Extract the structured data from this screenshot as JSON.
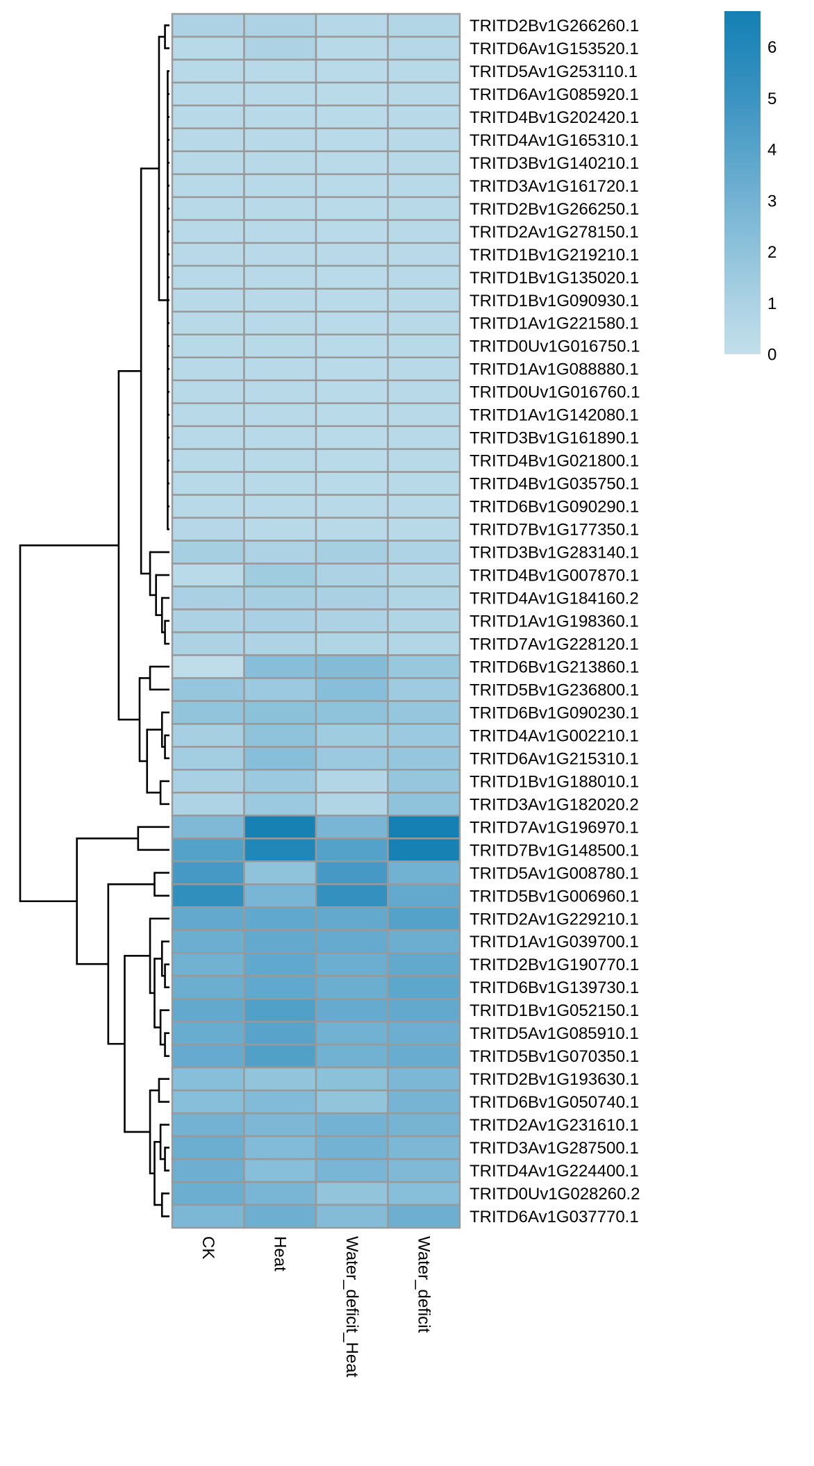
{
  "chart_data": {
    "type": "heatmap",
    "title": "",
    "columns": [
      "CK",
      "Heat",
      "Water_deficit_Heat",
      "Water_deficit"
    ],
    "rows": [
      "TRITD2Bv1G266260.1",
      "TRITD6Av1G153520.1",
      "TRITD5Av1G253110.1",
      "TRITD6Av1G085920.1",
      "TRITD4Bv1G202420.1",
      "TRITD4Av1G165310.1",
      "TRITD3Bv1G140210.1",
      "TRITD3Av1G161720.1",
      "TRITD2Bv1G266250.1",
      "TRITD2Av1G278150.1",
      "TRITD1Bv1G219210.1",
      "TRITD1Bv1G135020.1",
      "TRITD1Bv1G090930.1",
      "TRITD1Av1G221580.1",
      "TRITD0Uv1G016750.1",
      "TRITD1Av1G088880.1",
      "TRITD0Uv1G016760.1",
      "TRITD1Av1G142080.1",
      "TRITD3Bv1G161890.1",
      "TRITD4Bv1G021800.1",
      "TRITD4Bv1G035750.1",
      "TRITD6Bv1G090290.1",
      "TRITD7Bv1G177350.1",
      "TRITD3Bv1G283140.1",
      "TRITD4Bv1G007870.1",
      "TRITD4Av1G184160.2",
      "TRITD1Av1G198360.1",
      "TRITD7Av1G228120.1",
      "TRITD6Bv1G213860.1",
      "TRITD5Bv1G236800.1",
      "TRITD6Bv1G090230.1",
      "TRITD4Av1G002210.1",
      "TRITD6Av1G215310.1",
      "TRITD1Bv1G188010.1",
      "TRITD3Av1G182020.2",
      "TRITD7Av1G196970.1",
      "TRITD7Bv1G148500.1",
      "TRITD5Av1G008780.1",
      "TRITD5Bv1G006960.1",
      "TRITD2Av1G229210.1",
      "TRITD1Av1G039700.1",
      "TRITD2Bv1G190770.1",
      "TRITD6Bv1G139730.1",
      "TRITD1Bv1G052150.1",
      "TRITD5Av1G085910.1",
      "TRITD5Bv1G070350.1",
      "TRITD2Bv1G193630.1",
      "TRITD6Bv1G050740.1",
      "TRITD2Av1G231610.1",
      "TRITD3Av1G287500.1",
      "TRITD4Av1G224400.1",
      "TRITD0Uv1G028260.2",
      "TRITD6Av1G037770.1"
    ],
    "values": [
      [
        1.0,
        1.0,
        0.6,
        0.7
      ],
      [
        0.5,
        1.0,
        0.5,
        0.6
      ],
      [
        0.5,
        0.5,
        0.4,
        0.5
      ],
      [
        0.5,
        0.5,
        0.4,
        0.5
      ],
      [
        0.5,
        0.5,
        0.4,
        0.5
      ],
      [
        0.5,
        0.5,
        0.4,
        0.5
      ],
      [
        0.5,
        0.5,
        0.4,
        0.5
      ],
      [
        0.5,
        0.5,
        0.4,
        0.5
      ],
      [
        0.5,
        0.5,
        0.4,
        0.5
      ],
      [
        0.5,
        0.5,
        0.4,
        0.5
      ],
      [
        0.5,
        0.5,
        0.5,
        0.5
      ],
      [
        0.5,
        0.5,
        0.4,
        0.5
      ],
      [
        0.5,
        0.5,
        0.4,
        0.5
      ],
      [
        0.5,
        0.5,
        0.4,
        0.5
      ],
      [
        0.5,
        0.5,
        0.4,
        0.5
      ],
      [
        0.5,
        0.5,
        0.4,
        0.5
      ],
      [
        0.5,
        0.5,
        0.4,
        0.5
      ],
      [
        0.5,
        0.5,
        0.4,
        0.5
      ],
      [
        0.5,
        0.5,
        0.4,
        0.5
      ],
      [
        0.5,
        0.5,
        0.4,
        0.5
      ],
      [
        0.5,
        0.5,
        0.4,
        0.5
      ],
      [
        0.5,
        0.5,
        0.5,
        0.5
      ],
      [
        0.6,
        0.5,
        0.5,
        0.5
      ],
      [
        1.2,
        1.0,
        1.2,
        0.9
      ],
      [
        0.4,
        1.4,
        1.0,
        0.7
      ],
      [
        1.1,
        1.2,
        1.1,
        0.8
      ],
      [
        1.0,
        1.1,
        1.0,
        0.8
      ],
      [
        1.0,
        0.9,
        0.8,
        0.7
      ],
      [
        0.2,
        2.3,
        2.4,
        1.7
      ],
      [
        1.8,
        1.6,
        2.3,
        1.5
      ],
      [
        1.9,
        2.1,
        2.0,
        1.8
      ],
      [
        1.2,
        2.0,
        1.4,
        1.6
      ],
      [
        1.3,
        2.3,
        1.6,
        1.8
      ],
      [
        1.1,
        1.6,
        0.7,
        1.8
      ],
      [
        0.9,
        1.6,
        0.8,
        2.0
      ],
      [
        2.6,
        6.6,
        2.8,
        6.7
      ],
      [
        4.1,
        6.1,
        4.1,
        6.6
      ],
      [
        4.6,
        2.0,
        4.6,
        3.1
      ],
      [
        5.4,
        2.8,
        5.3,
        3.6
      ],
      [
        3.6,
        3.7,
        3.6,
        4.1
      ],
      [
        3.3,
        3.6,
        3.5,
        3.3
      ],
      [
        3.1,
        3.7,
        3.3,
        3.6
      ],
      [
        3.3,
        3.7,
        3.3,
        3.8
      ],
      [
        3.6,
        4.2,
        3.5,
        3.6
      ],
      [
        3.4,
        4.0,
        3.1,
        3.3
      ],
      [
        3.5,
        4.2,
        3.1,
        3.4
      ],
      [
        2.3,
        1.9,
        2.1,
        2.7
      ],
      [
        2.3,
        2.5,
        1.9,
        2.9
      ],
      [
        3.0,
        2.7,
        3.0,
        2.9
      ],
      [
        3.3,
        2.5,
        3.0,
        2.7
      ],
      [
        3.2,
        2.3,
        2.8,
        2.6
      ],
      [
        3.3,
        2.8,
        1.9,
        2.3
      ],
      [
        2.7,
        3.2,
        2.4,
        3.2
      ]
    ],
    "legend": {
      "placement": "right",
      "range": [
        0,
        6.7
      ],
      "ticks": [
        "0",
        "1",
        "2",
        "3",
        "4",
        "5",
        "6"
      ],
      "color_stops": [
        [
          0,
          "#c2dfeb"
        ],
        [
          1,
          "#acd2e4"
        ],
        [
          2,
          "#8fc3db"
        ],
        [
          3,
          "#74b2d3"
        ],
        [
          4,
          "#57a3ca"
        ],
        [
          5,
          "#3b93c1"
        ],
        [
          6,
          "#2288b9"
        ],
        [
          6.7,
          "#1580b3"
        ]
      ]
    },
    "cell_border_color": "#999999",
    "row_dendrogram": {
      "h": 10,
      "c": [
        {
          "h": 3.4,
          "c": [
            {
              "h": 1.9,
              "c": [
                {
                  "h": 0.7,
                  "c": [
                    {
                      "h": 0.3,
                      "c": [
                        0,
                        1
                      ]
                    },
                    {
                      "h": 0.12,
                      "c": [
                        2,
                        3,
                        4,
                        5,
                        6,
                        7,
                        8,
                        9,
                        10,
                        11,
                        12,
                        13,
                        14,
                        15,
                        16,
                        17,
                        18,
                        19,
                        20,
                        21,
                        22
                      ]
                    }
                  ]
                },
                {
                  "h": 1.3,
                  "c": [
                    23,
                    {
                      "h": 0.9,
                      "c": [
                        24,
                        {
                          "h": 0.5,
                          "c": [
                            25,
                            {
                              "h": 0.3,
                              "c": [
                                26,
                                27
                              ]
                            }
                          ]
                        }
                      ]
                    }
                  ]
                }
              ]
            },
            {
              "h": 2.0,
              "c": [
                {
                  "h": 1.3,
                  "c": [
                    28,
                    29
                  ]
                },
                {
                  "h": 1.5,
                  "c": [
                    {
                      "h": 0.5,
                      "c": [
                        30,
                        {
                          "h": 0.3,
                          "c": [
                            31,
                            32
                          ]
                        }
                      ]
                    },
                    {
                      "h": 0.6,
                      "c": [
                        33,
                        34
                      ]
                    }
                  ]
                }
              ]
            }
          ]
        },
        {
          "h": 6.2,
          "c": [
            {
              "h": 2.1,
              "c": [
                35,
                36
              ]
            },
            {
              "h": 4.1,
              "c": [
                {
                  "h": 1.0,
                  "c": [
                    37,
                    38
                  ]
                },
                {
                  "h": 3.0,
                  "c": [
                    {
                      "h": 1.3,
                      "c": [
                        39,
                        {
                          "h": 1.0,
                          "c": [
                            {
                              "h": 0.5,
                              "c": [
                                40,
                                {
                                  "h": 0.3,
                                  "c": [
                                    41,
                                    42
                                  ]
                                }
                              ]
                            },
                            {
                              "h": 0.6,
                              "c": [
                                43,
                                {
                                  "h": 0.3,
                                  "c": [
                                    44,
                                    45
                                  ]
                                }
                              ]
                            }
                          ]
                        }
                      ]
                    },
                    {
                      "h": 1.3,
                      "c": [
                        {
                          "h": 0.7,
                          "c": [
                            46,
                            47
                          ]
                        },
                        {
                          "h": 1.0,
                          "c": [
                            {
                              "h": 0.6,
                              "c": [
                                48,
                                {
                                  "h": 0.3,
                                  "c": [
                                    49,
                                    50
                                  ]
                                }
                              ]
                            },
                            {
                              "h": 0.5,
                              "c": [
                                51,
                                52
                              ]
                            }
                          ]
                        }
                      ]
                    }
                  ]
                }
              ]
            }
          ]
        }
      ]
    }
  }
}
